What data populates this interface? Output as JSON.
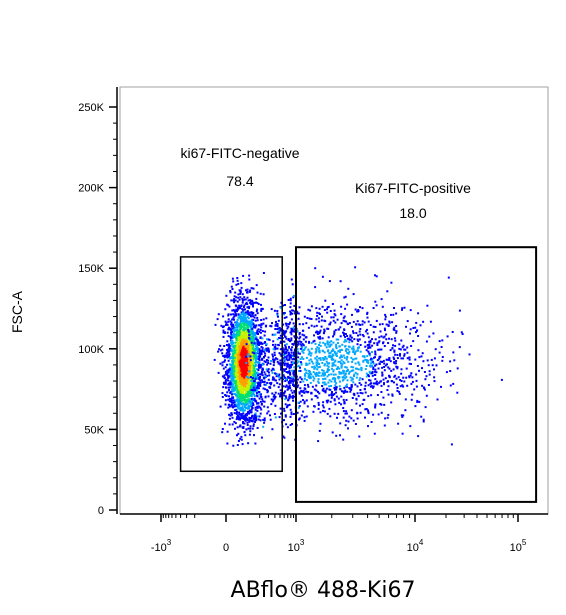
{
  "chart_data": {
    "type": "scatter",
    "subtype": "flow-cytometry-density-plot",
    "xlabel": "ABflo® 488-Ki67",
    "ylabel": "FSC-A",
    "x_scale": "biexponential",
    "y_scale": "linear",
    "ylim": [
      0,
      262144
    ],
    "grid": false,
    "x_ticks": [
      {
        "value": -1000,
        "base": "-10",
        "exp": "3"
      },
      {
        "value": 0,
        "base": "0",
        "exp": ""
      },
      {
        "value": 1000,
        "base": "10",
        "exp": "3"
      },
      {
        "value": 10000,
        "base": "10",
        "exp": "4"
      },
      {
        "value": 100000,
        "base": "10",
        "exp": "5"
      }
    ],
    "y_ticks": [
      {
        "value": 0,
        "label": "0"
      },
      {
        "value": 50000,
        "label": "50K"
      },
      {
        "value": 100000,
        "label": "100K"
      },
      {
        "value": 150000,
        "label": "150K"
      },
      {
        "value": 200000,
        "label": "200K"
      },
      {
        "value": 250000,
        "label": "250K"
      }
    ],
    "gates": [
      {
        "name": "ki67-FITC-negative",
        "percent": "78.4",
        "x_range": [
          -400,
          550
        ],
        "y_range": [
          24000,
          157000
        ]
      },
      {
        "name": "Ki67-FITC-positive",
        "percent": "18.0",
        "x_range": [
          1000,
          150000
        ],
        "y_range": [
          5000,
          163000
        ]
      }
    ],
    "populations": [
      {
        "name": "negative",
        "x_center": 80,
        "y_center": 92000,
        "share": 0.784
      },
      {
        "name": "positive",
        "x_center": 3500,
        "y_center": 92000,
        "share": 0.18
      }
    ],
    "density_colors": [
      "#0000ff",
      "#00a8ff",
      "#00e070",
      "#c8f000",
      "#ffa000",
      "#ff0000"
    ]
  }
}
